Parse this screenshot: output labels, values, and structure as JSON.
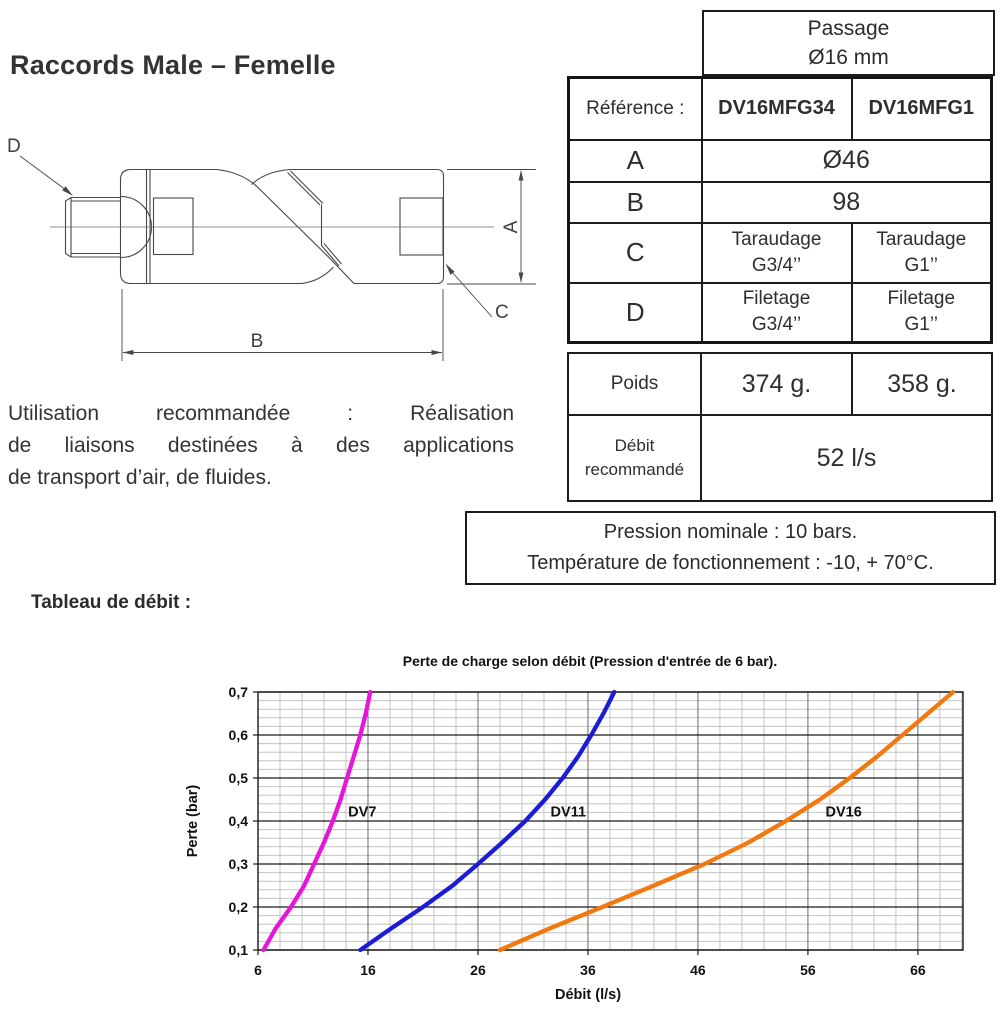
{
  "page_title": "Raccords Male – Femelle",
  "drawing": {
    "dim_a": "A",
    "dim_b": "B",
    "dim_c": "C",
    "dim_d": "D"
  },
  "spec_table": {
    "passage_line1": "Passage",
    "passage_line2": "Ø16 mm",
    "reference_label": "Référence :",
    "ref1": "DV16MFG34",
    "ref2": "DV16MFG1",
    "a_label": "A",
    "a_value": "Ø46",
    "b_label": "B",
    "b_value": "98",
    "c_label": "C",
    "c1_line1": "Taraudage",
    "c1_line2": "G3/4’’",
    "c2_line1": "Taraudage",
    "c2_line2": "G1’’",
    "d_label": "D",
    "d1_line1": "Filetage",
    "d1_line2": "G3/4’’",
    "d2_line1": "Filetage",
    "d2_line2": "G1’’",
    "poids_label": "Poids",
    "poids1": "374 g.",
    "poids2": "358 g.",
    "debit_label_line1": "Débit",
    "debit_label_line2": "recommandé",
    "debit_value": "52 l/s"
  },
  "conditions": {
    "line1": "Pression nominale : 10 bars.",
    "line2": "Température de fonctionnement : -10, + 70°C."
  },
  "usage": {
    "line1": "Utilisation recommandée : Réalisation",
    "line2": "de liaisons destinées à des applications",
    "line3": "de transport d’air, de fluides."
  },
  "flow_heading": "Tableau de débit :",
  "chart_data": {
    "type": "line",
    "title": "Perte de charge selon débit (Pression d'entrée de 6 bar).",
    "xlabel": "Débit (l/s)",
    "ylabel": "Perte (bar)",
    "xlim": [
      6,
      70.1
    ],
    "ylim": [
      0.1,
      0.7
    ],
    "x_major_ticks": [
      6,
      16,
      26,
      36,
      46,
      56,
      66
    ],
    "x_tick_labels": [
      "6",
      "16",
      "26",
      "36",
      "46",
      "56",
      "66"
    ],
    "y_major_ticks": [
      0.1,
      0.2,
      0.3,
      0.4,
      0.5,
      0.6,
      0.7
    ],
    "y_tick_labels": [
      "0,1",
      "0,2",
      "0,3",
      "0,4",
      "0,5",
      "0,6",
      "0,7"
    ],
    "x_minor_step": 2,
    "y_minor_step": 0.02,
    "grid": true,
    "legend_position": "inline-labels",
    "colors": {
      "grid_minor": "#c3c3c3",
      "grid_major_v": "#6e6e6e",
      "grid_major_h": "#1a1a1a",
      "axis": "#1a1a1a",
      "text": "#111111"
    },
    "series": [
      {
        "name": "DV7",
        "color": "#e715dc",
        "label_pos": [
          14.2,
          0.42
        ],
        "points": [
          [
            6.5,
            0.1
          ],
          [
            7.6,
            0.15
          ],
          [
            9.0,
            0.2
          ],
          [
            10.2,
            0.25
          ],
          [
            11.1,
            0.3
          ],
          [
            12.0,
            0.35
          ],
          [
            12.8,
            0.4
          ],
          [
            13.5,
            0.45
          ],
          [
            14.1,
            0.5
          ],
          [
            14.7,
            0.55
          ],
          [
            15.3,
            0.6
          ],
          [
            15.8,
            0.65
          ],
          [
            16.2,
            0.7
          ]
        ]
      },
      {
        "name": "DV11",
        "color": "#1b1bd8",
        "label_pos": [
          32.6,
          0.42
        ],
        "points": [
          [
            15.3,
            0.1
          ],
          [
            18.1,
            0.15
          ],
          [
            21.0,
            0.2
          ],
          [
            23.7,
            0.25
          ],
          [
            26.0,
            0.3
          ],
          [
            28.2,
            0.35
          ],
          [
            30.3,
            0.4
          ],
          [
            32.1,
            0.45
          ],
          [
            33.7,
            0.5
          ],
          [
            35.1,
            0.55
          ],
          [
            36.3,
            0.6
          ],
          [
            37.4,
            0.65
          ],
          [
            38.4,
            0.7
          ]
        ]
      },
      {
        "name": "DV16",
        "color": "#f1790f",
        "label_pos": [
          57.6,
          0.42
        ],
        "points": [
          [
            28.0,
            0.1
          ],
          [
            32.5,
            0.15
          ],
          [
            37.3,
            0.2
          ],
          [
            42.0,
            0.25
          ],
          [
            46.6,
            0.3
          ],
          [
            50.6,
            0.35
          ],
          [
            54.0,
            0.4
          ],
          [
            57.1,
            0.45
          ],
          [
            59.8,
            0.5
          ],
          [
            62.3,
            0.55
          ],
          [
            64.6,
            0.6
          ],
          [
            66.9,
            0.65
          ],
          [
            69.2,
            0.7
          ]
        ]
      }
    ]
  }
}
